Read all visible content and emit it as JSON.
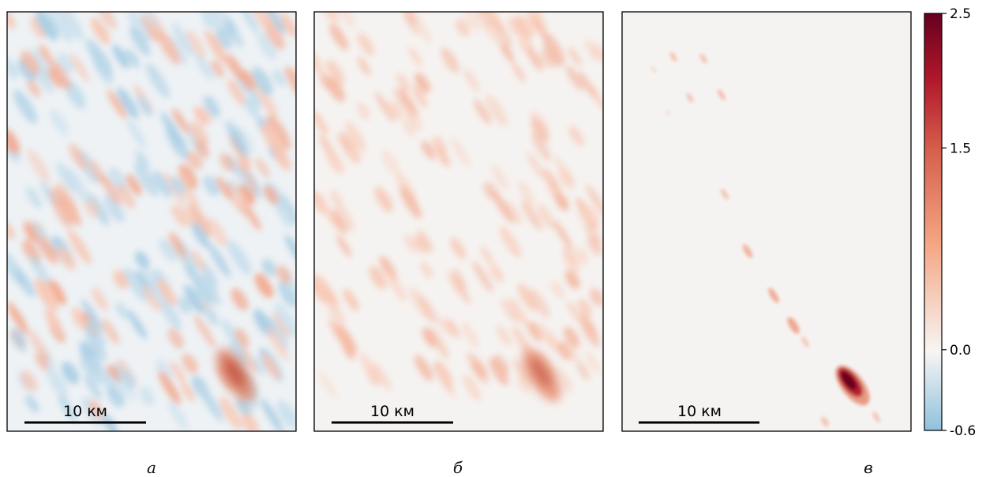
{
  "chart_data": [
    {
      "type": "heatmap",
      "panel_label": "а",
      "scale_bar": "10 км",
      "hotspot_peak": 1.7,
      "background": "mixed positive/negative stripes (about -0.6 to 0.4)"
    },
    {
      "type": "heatmap",
      "panel_label": "б",
      "scale_bar": "10 км",
      "hotspot_peak": 1.5,
      "background": "positive stripes only (0 to about 0.4)"
    },
    {
      "type": "heatmap",
      "panel_label": "в",
      "scale_bar": "10 км",
      "hotspot_peak": 2.5,
      "background": "sparse small positive blobs along diagonal"
    }
  ],
  "colorbar": {
    "ticks": [
      "2.5",
      "1.5",
      "0.0",
      "-0.6"
    ],
    "tick_values": [
      2.5,
      1.5,
      0.0,
      -0.6
    ],
    "range": [
      -0.6,
      2.5
    ],
    "colormap": "diverging blue-white-red (RdBu_r)",
    "colors": {
      "min": "#8fc1dd",
      "zero": "#f7f5f3",
      "mid": "#f4a582",
      "high": "#d6604d",
      "max": "#67001f"
    }
  }
}
